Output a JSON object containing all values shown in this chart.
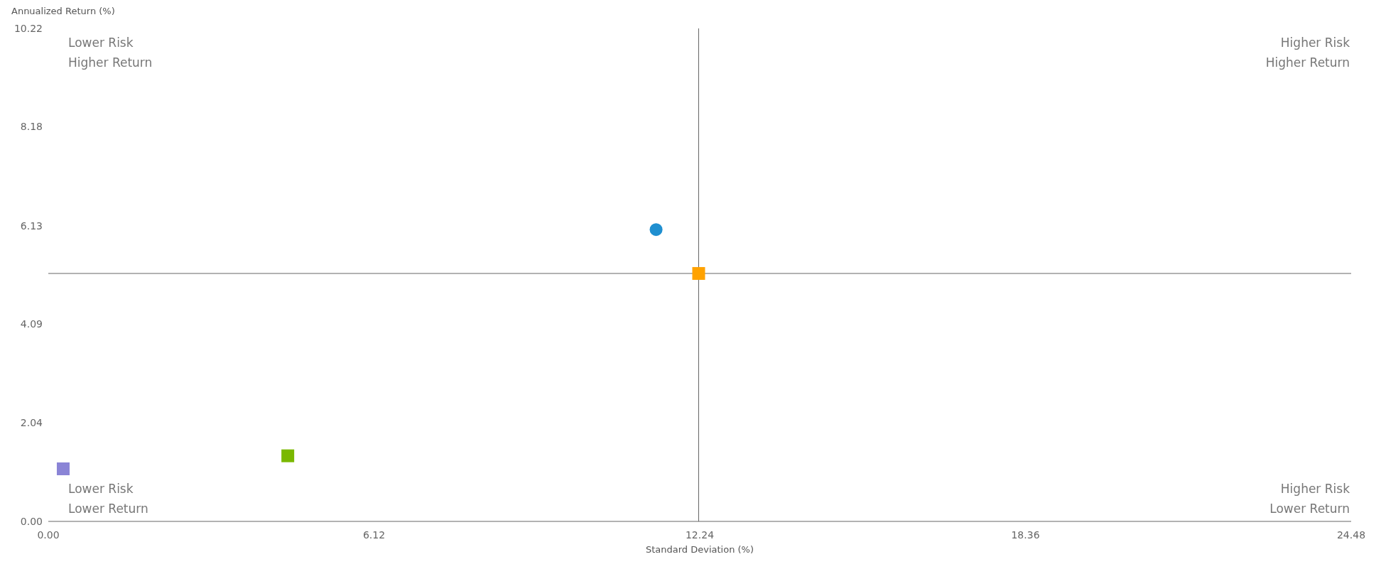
{
  "chart_data": {
    "type": "scatter",
    "xlabel": "Standard Deviation (%)",
    "ylabel": "Annualized Return (%)",
    "xlim": [
      0,
      24.48
    ],
    "ylim": [
      0,
      10.22
    ],
    "xticks": [
      {
        "value": 0,
        "label": "0.00"
      },
      6.12,
      12.24,
      18.36,
      24.48
    ],
    "yticks": [
      {
        "value": 0,
        "label": "0.00"
      },
      2.04,
      4.09,
      6.13,
      8.18,
      10.22
    ],
    "grid": false,
    "legend": false,
    "series": [
      {
        "color": "#1f8fd0",
        "marker": "circle",
        "x": [
          11.42
        ],
        "values": [
          6.05
        ]
      },
      {
        "color": "#ffa200",
        "marker": "square",
        "x": [
          12.22
        ],
        "values": [
          5.14
        ]
      },
      {
        "color": "#7ab800",
        "marker": "square",
        "x": [
          4.5
        ],
        "values": [
          1.36
        ]
      },
      {
        "color": "#8a84d6",
        "marker": "square",
        "x": [
          0.28
        ],
        "values": [
          1.09
        ]
      }
    ],
    "ref_lines": [
      {
        "axis": "x",
        "value": 12.22,
        "color": "#666666"
      },
      {
        "axis": "y",
        "value": 5.14,
        "color": "#666666"
      }
    ],
    "annotations": [
      "Lower Risk\nHigher Return",
      "Higher Risk\nHigher Return",
      "Lower Risk\nLower Return",
      "Higher Risk\nLower Return"
    ]
  }
}
